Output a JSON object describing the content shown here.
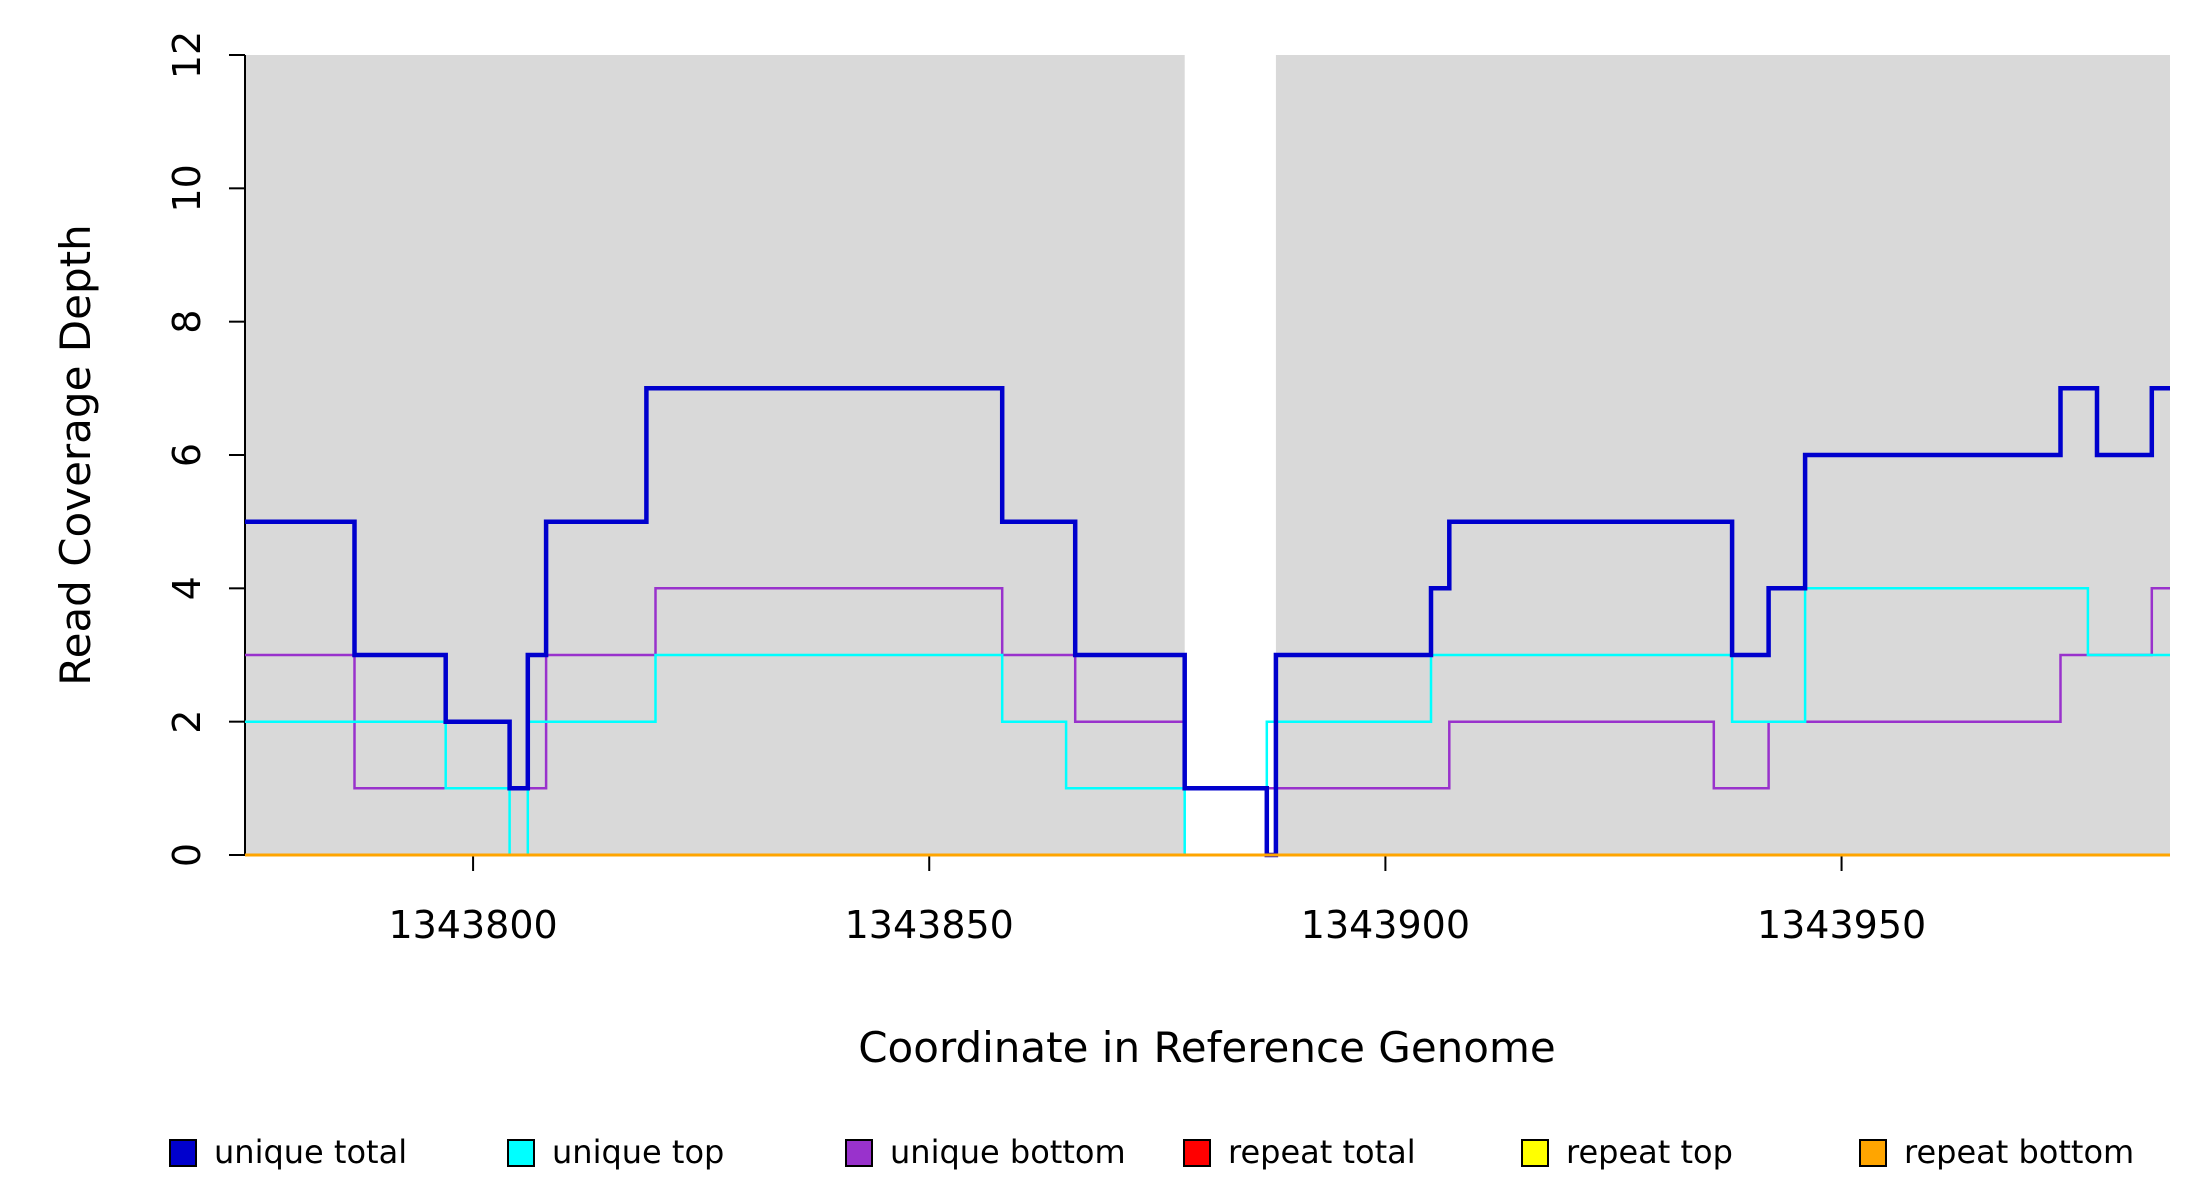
{
  "chart_data": {
    "type": "line",
    "subtype": "step-coverage-plot",
    "title": "",
    "xlabel": "Coordinate in Reference Genome",
    "ylabel": "Read Coverage Depth",
    "xlim": [
      1343775,
      1343986
    ],
    "ylim": [
      0,
      12
    ],
    "x_ticks": [
      1343800,
      1343850,
      1343900,
      1343950
    ],
    "y_ticks": [
      0,
      2,
      4,
      6,
      8,
      10,
      12
    ],
    "grid": false,
    "plot_background": "#ffffff",
    "background_regions": [
      {
        "name": "shaded-region-left",
        "x0": 1343775,
        "x1": 1343878,
        "color": "#d9d9d9"
      },
      {
        "name": "shaded-region-right",
        "x0": 1343888,
        "x1": 1343986,
        "color": "#d9d9d9"
      }
    ],
    "series": [
      {
        "name": "repeat total",
        "color": "#ff0000",
        "width": 2.5,
        "steps": [
          [
            1343775,
            0
          ]
        ]
      },
      {
        "name": "repeat top",
        "color": "#ffff00",
        "width": 2.5,
        "steps": [
          [
            1343775,
            0
          ]
        ]
      },
      {
        "name": "unique bottom",
        "color": "#9932cc",
        "width": 2.5,
        "steps": [
          [
            1343775,
            3
          ],
          [
            1343787,
            1
          ],
          [
            1343808,
            3
          ],
          [
            1343820,
            4
          ],
          [
            1343858,
            3
          ],
          [
            1343866,
            2
          ],
          [
            1343878,
            1
          ],
          [
            1343907,
            2
          ],
          [
            1343936,
            1
          ],
          [
            1343942,
            2
          ],
          [
            1343974,
            3
          ],
          [
            1343984,
            4
          ]
        ]
      },
      {
        "name": "unique top",
        "color": "#00ffff",
        "width": 2.5,
        "steps": [
          [
            1343775,
            2
          ],
          [
            1343797,
            1
          ],
          [
            1343804,
            0
          ],
          [
            1343806,
            2
          ],
          [
            1343820,
            3
          ],
          [
            1343858,
            2
          ],
          [
            1343865,
            1
          ],
          [
            1343878,
            0
          ],
          [
            1343887,
            2
          ],
          [
            1343905,
            3
          ],
          [
            1343938,
            2
          ],
          [
            1343946,
            4
          ],
          [
            1343977,
            3
          ]
        ]
      },
      {
        "name": "unique total",
        "color": "#0000cd",
        "width": 4.5,
        "steps": [
          [
            1343775,
            5
          ],
          [
            1343787,
            3
          ],
          [
            1343797,
            2
          ],
          [
            1343804,
            1
          ],
          [
            1343806,
            3
          ],
          [
            1343808,
            5
          ],
          [
            1343819,
            7
          ],
          [
            1343858,
            5
          ],
          [
            1343866,
            3
          ],
          [
            1343878,
            1
          ],
          [
            1343887,
            0
          ],
          [
            1343888,
            3
          ],
          [
            1343905,
            4
          ],
          [
            1343907,
            5
          ],
          [
            1343938,
            3
          ],
          [
            1343942,
            4
          ],
          [
            1343946,
            6
          ],
          [
            1343974,
            7
          ],
          [
            1343978,
            6
          ],
          [
            1343984,
            7
          ]
        ]
      },
      {
        "name": "repeat bottom",
        "color": "#ffa500",
        "width": 3,
        "steps": [
          [
            1343775,
            0
          ]
        ]
      }
    ],
    "legend": {
      "position": "bottom",
      "items": [
        {
          "label": "unique total",
          "color": "#0000cd"
        },
        {
          "label": "unique top",
          "color": "#00ffff"
        },
        {
          "label": "unique bottom",
          "color": "#9932cc"
        },
        {
          "label": "repeat total",
          "color": "#ff0000"
        },
        {
          "label": "repeat top",
          "color": "#ffff00"
        },
        {
          "label": "repeat bottom",
          "color": "#ffa500"
        }
      ]
    }
  }
}
